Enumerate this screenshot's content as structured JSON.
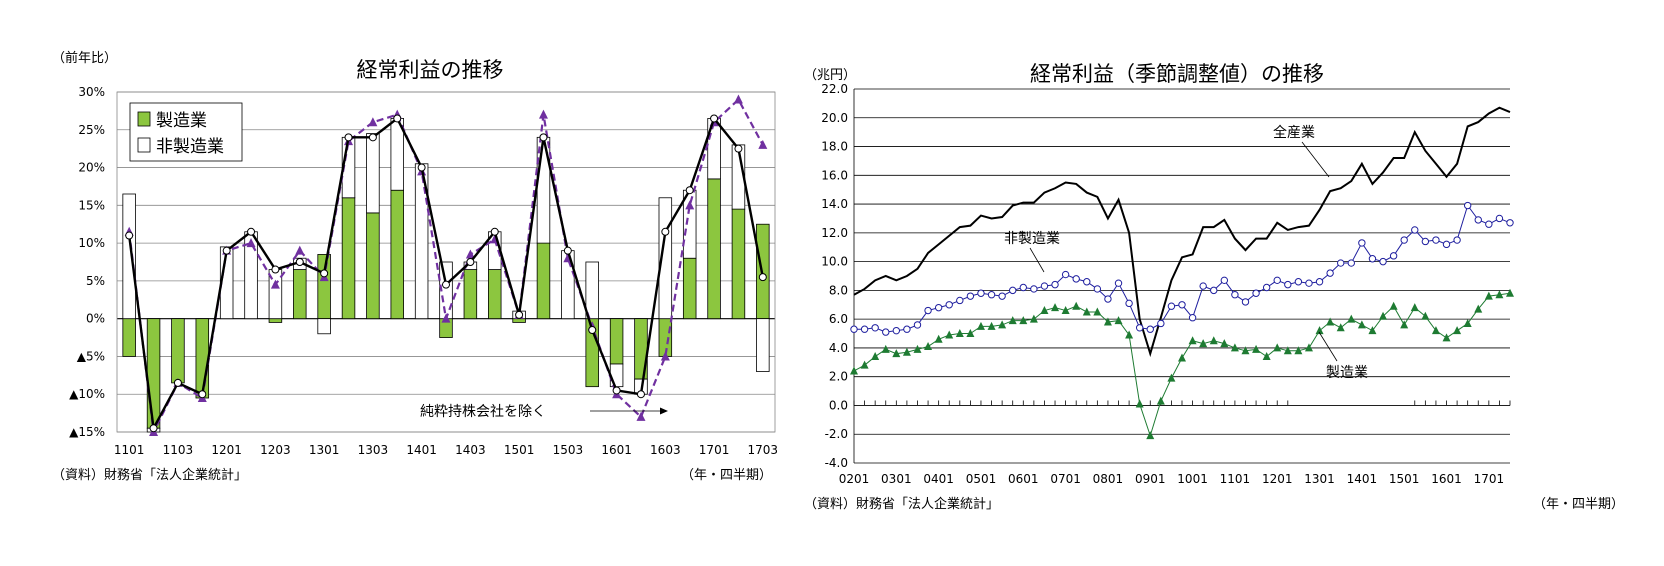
{
  "chart_data": [
    {
      "type": "bar",
      "title": "経常利益の推移",
      "ylabel": "（前年比）",
      "xlabel": "（年・四半期）",
      "source": "（資料）財務省「法人企業統計」",
      "ylim": [
        -15,
        30
      ],
      "y_ticks": [
        30,
        25,
        20,
        15,
        10,
        5,
        0,
        -5,
        -10,
        -15
      ],
      "y_tick_labels": [
        "30%",
        "25%",
        "20%",
        "15%",
        "10%",
        "5%",
        "0%",
        "▲5%",
        "▲10%",
        "▲15%"
      ],
      "x_tick_labels": [
        "1101",
        "1103",
        "1201",
        "1203",
        "1301",
        "1303",
        "1401",
        "1403",
        "1501",
        "1503",
        "1601",
        "1603",
        "1701",
        "1703"
      ],
      "legend": [
        "製造業",
        "非製造業"
      ],
      "legend_position": "top-left",
      "annotation": "純粋持株会社を除く",
      "grid": true,
      "categories": [
        "1101",
        "1102",
        "1103",
        "1104",
        "1201",
        "1202",
        "1203",
        "1204",
        "1301",
        "1302",
        "1303",
        "1304",
        "1401",
        "1402",
        "1403",
        "1404",
        "1501",
        "1502",
        "1503",
        "1504",
        "1601",
        "1602",
        "1603",
        "1604",
        "1701",
        "1702",
        "1703"
      ],
      "series": [
        {
          "name": "製造業",
          "kind": "stacked-bar",
          "color": "#8cc63f",
          "values": [
            -5,
            -14.5,
            -8.5,
            -10.5,
            0,
            0,
            -0.5,
            6.5,
            8.5,
            16,
            14,
            17,
            0,
            -2.5,
            6.5,
            6.5,
            -0.5,
            10,
            0,
            -9,
            -6,
            -8,
            -5,
            8,
            18.5,
            14.5,
            12.5
          ]
        },
        {
          "name": "非製造業",
          "kind": "stacked-bar",
          "color": "#ffffff",
          "values": [
            16.5,
            -0.5,
            0,
            0,
            9.5,
            11.5,
            6.5,
            1.5,
            -2,
            8,
            10.5,
            9.5,
            20.5,
            7.5,
            1,
            5,
            1,
            14,
            9,
            7.5,
            -3,
            -2,
            16,
            9,
            8,
            8.5,
            -7
          ]
        },
        {
          "name": "",
          "kind": "line",
          "color": "#000000",
          "values": [
            11,
            -14.5,
            -8.5,
            -10,
            9,
            11.5,
            6.5,
            7.5,
            6,
            24,
            24,
            26.5,
            20,
            4.5,
            7.5,
            11.5,
            0.5,
            24,
            9,
            -1.5,
            -9.5,
            -10,
            11.5,
            17,
            26.5,
            22.5,
            5.5
          ]
        },
        {
          "name": "",
          "kind": "dashed-line",
          "color": "#7030a0",
          "values": [
            11.5,
            -15,
            -8.5,
            -10.5,
            9,
            10,
            4.5,
            9,
            5.5,
            23.5,
            26,
            27,
            19.5,
            0,
            8.5,
            10.5,
            0.5,
            27,
            8,
            -1,
            -10,
            -13,
            -5,
            15,
            26,
            29,
            23
          ]
        }
      ]
    },
    {
      "type": "line",
      "title": "経常利益（季節調整値）の推移",
      "ylabel": "（兆円）",
      "xlabel": "（年・四半期）",
      "source": "（資料）財務省「法人企業統計」",
      "ylim": [
        -4,
        22
      ],
      "y_ticks": [
        22,
        20,
        18,
        16,
        14,
        12,
        10,
        8,
        6,
        4,
        2,
        0,
        -2,
        -4
      ],
      "y_tick_labels": [
        "22.0",
        "20.0",
        "18.0",
        "16.0",
        "14.0",
        "12.0",
        "10.0",
        "8.0",
        "6.0",
        "4.0",
        "2.0",
        "0.0",
        "-2.0",
        "-4.0"
      ],
      "x_tick_labels": [
        "0201",
        "0301",
        "0401",
        "0501",
        "0601",
        "0701",
        "0801",
        "0901",
        "1001",
        "1101",
        "1201",
        "1301",
        "1401",
        "1501",
        "1601",
        "1701"
      ],
      "annotations": [
        "全産業",
        "非製造業",
        "製造業"
      ],
      "grid": true,
      "series": [
        {
          "name": "全産業",
          "color": "#000000",
          "values": [
            7.7,
            8.1,
            8.7,
            9.0,
            8.7,
            9.0,
            9.5,
            10.6,
            11.2,
            11.8,
            12.4,
            12.5,
            13.2,
            13.0,
            13.1,
            13.9,
            14.1,
            14.1,
            14.8,
            15.1,
            15.5,
            15.4,
            14.8,
            14.5,
            13.0,
            14.3,
            12.0,
            6.0,
            3.6,
            6.1,
            8.7,
            10.3,
            10.5,
            12.4,
            12.4,
            12.9,
            11.6,
            10.8,
            11.6,
            11.6,
            12.7,
            12.2,
            12.4,
            12.5,
            13.6,
            14.9,
            15.1,
            15.6,
            16.8,
            15.4,
            16.2,
            17.2,
            17.2,
            19.0,
            17.7,
            16.8,
            15.9,
            16.8,
            19.4,
            19.7,
            20.3,
            20.7,
            20.4
          ]
        },
        {
          "name": "非製造業",
          "color": "#1f1f9f",
          "marker": "circle",
          "values": [
            5.3,
            5.3,
            5.4,
            5.1,
            5.2,
            5.3,
            5.6,
            6.6,
            6.8,
            7.0,
            7.3,
            7.6,
            7.8,
            7.7,
            7.6,
            8.0,
            8.2,
            8.1,
            8.3,
            8.4,
            9.1,
            8.8,
            8.6,
            8.1,
            7.4,
            8.5,
            7.1,
            5.4,
            5.3,
            5.7,
            6.9,
            7.0,
            6.1,
            8.3,
            8.0,
            8.7,
            7.7,
            7.2,
            7.8,
            8.2,
            8.7,
            8.4,
            8.6,
            8.5,
            8.6,
            9.2,
            9.9,
            9.9,
            11.3,
            10.2,
            10.0,
            10.4,
            11.5,
            12.2,
            11.4,
            11.5,
            11.2,
            11.5,
            13.9,
            12.9,
            12.6,
            13.0,
            12.7
          ]
        },
        {
          "name": "製造業",
          "color": "#1e7b32",
          "marker": "triangle",
          "values": [
            2.4,
            2.8,
            3.4,
            3.9,
            3.6,
            3.7,
            3.9,
            4.1,
            4.6,
            4.9,
            5.0,
            5.0,
            5.5,
            5.5,
            5.6,
            5.9,
            5.9,
            6.0,
            6.6,
            6.8,
            6.6,
            6.9,
            6.5,
            6.5,
            5.8,
            5.9,
            4.9,
            0.1,
            -2.1,
            0.3,
            1.9,
            3.3,
            4.5,
            4.3,
            4.5,
            4.3,
            4.0,
            3.8,
            3.9,
            3.4,
            4.0,
            3.8,
            3.8,
            4.0,
            5.2,
            5.8,
            5.4,
            6.0,
            5.6,
            5.2,
            6.2,
            6.9,
            5.6,
            6.8,
            6.2,
            5.2,
            4.7,
            5.2,
            5.7,
            6.7,
            7.6,
            7.7,
            7.8
          ]
        }
      ]
    }
  ]
}
